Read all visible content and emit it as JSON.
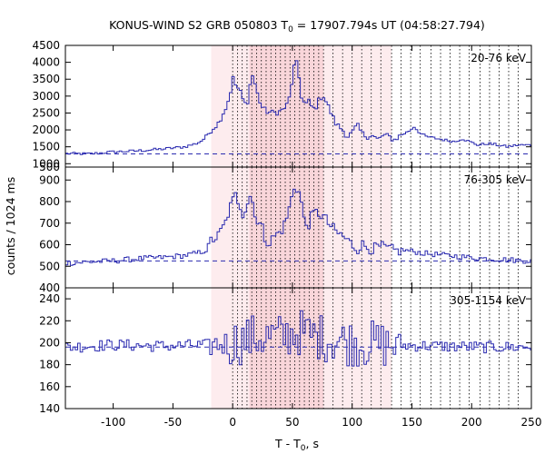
{
  "title": {
    "prefix": "KONUS-WIND S2 GRB 050803 T",
    "sub": "0",
    "suffix": " = 17907.794s UT (04:58:27.794)"
  },
  "ylabel": "counts / 1024 ms",
  "xlabel": {
    "prefix": "T - T",
    "sub": "0",
    "suffix": ", s"
  },
  "colors": {
    "curve": "#2b2bb0",
    "background_line": "#2b2bb0",
    "shade_light": "#fdecee",
    "shade_dark": "#f9d6da",
    "frame": "#000000",
    "markers": "#000000"
  },
  "chart_data": {
    "type": "line",
    "step": true,
    "xlim": [
      -140,
      250
    ],
    "x_ticks": [
      -100,
      -50,
      0,
      50,
      100,
      150,
      200,
      250
    ],
    "x_tick_labels": [
      "-100",
      "-50",
      "0",
      "50",
      "100",
      "150",
      "200",
      "250"
    ],
    "shaded_regions": [
      {
        "x0": -18,
        "x1": 133,
        "shade": "light"
      },
      {
        "x0": 14,
        "x1": 76,
        "shade": "dark"
      }
    ],
    "interval_markers_x": [
      0,
      4,
      8,
      12,
      16,
      20,
      24,
      28,
      32,
      36,
      40,
      44,
      48,
      52,
      56,
      60,
      64,
      68,
      72,
      76,
      84,
      92,
      100,
      108,
      116,
      124,
      133,
      141,
      149,
      157,
      166,
      174,
      182,
      190,
      198,
      207,
      215,
      223,
      231,
      239
    ],
    "panels": [
      {
        "band": "20-76 keV",
        "ylim": [
          900,
          4500
        ],
        "y_ticks": [
          1000,
          1500,
          2000,
          2500,
          3000,
          3500,
          4000,
          4500
        ],
        "y_tick_labels": [
          "1000",
          "1500",
          "2000",
          "2500",
          "3000",
          "3500",
          "4000",
          "4500"
        ],
        "bottom_tick_label": "500",
        "background_level": 1290,
        "anchors": [
          [
            -140,
            1300
          ],
          [
            -120,
            1290
          ],
          [
            -100,
            1350
          ],
          [
            -80,
            1380
          ],
          [
            -60,
            1430
          ],
          [
            -40,
            1500
          ],
          [
            -30,
            1600
          ],
          [
            -25,
            1700
          ],
          [
            -20,
            1900
          ],
          [
            -18,
            2000
          ],
          [
            -12,
            2200
          ],
          [
            -8,
            2500
          ],
          [
            -5,
            2700
          ],
          [
            -2,
            3100
          ],
          [
            0,
            3550
          ],
          [
            2,
            3350
          ],
          [
            6,
            3150
          ],
          [
            9,
            2850
          ],
          [
            12,
            2700
          ],
          [
            14,
            3250
          ],
          [
            17,
            3650
          ],
          [
            20,
            3150
          ],
          [
            24,
            2700
          ],
          [
            28,
            2550
          ],
          [
            34,
            2500
          ],
          [
            40,
            2550
          ],
          [
            45,
            2700
          ],
          [
            48,
            3000
          ],
          [
            51,
            3800
          ],
          [
            53,
            4050
          ],
          [
            55,
            3700
          ],
          [
            58,
            2900
          ],
          [
            61,
            2750
          ],
          [
            64,
            2850
          ],
          [
            67,
            2600
          ],
          [
            70,
            2700
          ],
          [
            73,
            2950
          ],
          [
            76,
            3000
          ],
          [
            80,
            2700
          ],
          [
            86,
            2200
          ],
          [
            92,
            2000
          ],
          [
            96,
            1800
          ],
          [
            101,
            1950
          ],
          [
            104,
            2150
          ],
          [
            108,
            1900
          ],
          [
            112,
            1800
          ],
          [
            116,
            1850
          ],
          [
            122,
            1700
          ],
          [
            126,
            1850
          ],
          [
            131,
            1800
          ],
          [
            135,
            1700
          ],
          [
            141,
            1850
          ],
          [
            147,
            1950
          ],
          [
            152,
            2100
          ],
          [
            157,
            1900
          ],
          [
            162,
            1800
          ],
          [
            170,
            1750
          ],
          [
            178,
            1700
          ],
          [
            186,
            1650
          ],
          [
            192,
            1750
          ],
          [
            198,
            1650
          ],
          [
            206,
            1550
          ],
          [
            214,
            1600
          ],
          [
            222,
            1550
          ],
          [
            230,
            1500
          ],
          [
            238,
            1550
          ],
          [
            250,
            1550
          ]
        ],
        "noise_amp": 90,
        "series_name": ""
      },
      {
        "band": "76-305 keV",
        "ylim": [
          400,
          960
        ],
        "y_ticks": [
          500,
          600,
          700,
          800,
          900
        ],
        "y_tick_labels": [
          "500",
          "600",
          "700",
          "800",
          "900"
        ],
        "bottom_tick_label": "400",
        "background_level": 525,
        "anchors": [
          [
            -140,
            515
          ],
          [
            -120,
            520
          ],
          [
            -100,
            525
          ],
          [
            -80,
            535
          ],
          [
            -60,
            540
          ],
          [
            -40,
            550
          ],
          [
            -30,
            560
          ],
          [
            -22,
            575
          ],
          [
            -18,
            620
          ],
          [
            -12,
            640
          ],
          [
            -6,
            700
          ],
          [
            -3,
            760
          ],
          [
            0,
            800
          ],
          [
            2,
            830
          ],
          [
            6,
            790
          ],
          [
            9,
            740
          ],
          [
            12,
            790
          ],
          [
            15,
            830
          ],
          [
            18,
            770
          ],
          [
            21,
            700
          ],
          [
            24,
            690
          ],
          [
            27,
            630
          ],
          [
            31,
            610
          ],
          [
            35,
            640
          ],
          [
            40,
            660
          ],
          [
            44,
            700
          ],
          [
            48,
            780
          ],
          [
            52,
            880
          ],
          [
            55,
            850
          ],
          [
            57,
            820
          ],
          [
            60,
            700
          ],
          [
            63,
            690
          ],
          [
            67,
            740
          ],
          [
            71,
            750
          ],
          [
            76,
            730
          ],
          [
            80,
            700
          ],
          [
            86,
            660
          ],
          [
            92,
            640
          ],
          [
            96,
            620
          ],
          [
            100,
            600
          ],
          [
            104,
            580
          ],
          [
            108,
            600
          ],
          [
            112,
            590
          ],
          [
            118,
            580
          ],
          [
            124,
            590
          ],
          [
            130,
            580
          ],
          [
            136,
            570
          ],
          [
            142,
            575
          ],
          [
            150,
            570
          ],
          [
            160,
            560
          ],
          [
            170,
            555
          ],
          [
            180,
            550
          ],
          [
            190,
            545
          ],
          [
            200,
            540
          ],
          [
            215,
            535
          ],
          [
            230,
            530
          ],
          [
            250,
            525
          ]
        ],
        "noise_amp": 28,
        "series_name": ""
      },
      {
        "band": "305-1154 keV",
        "ylim": [
          140,
          250
        ],
        "y_ticks": [
          140,
          160,
          180,
          200,
          220,
          240
        ],
        "y_tick_labels": [
          "140",
          "160",
          "180",
          "200",
          "220",
          "240"
        ],
        "bottom_tick_label": "",
        "background_level": 196,
        "anchors": [
          [
            -140,
            196
          ],
          [
            -100,
            198
          ],
          [
            -60,
            197
          ],
          [
            -20,
            198
          ],
          [
            0,
            200
          ],
          [
            20,
            205
          ],
          [
            40,
            205
          ],
          [
            55,
            210
          ],
          [
            60,
            208
          ],
          [
            80,
            204
          ],
          [
            100,
            200
          ],
          [
            130,
            198
          ],
          [
            170,
            197
          ],
          [
            210,
            196
          ],
          [
            250,
            196
          ]
        ],
        "noise_amp": 12,
        "noise_amp_burst": 22,
        "series_name": ""
      }
    ]
  }
}
